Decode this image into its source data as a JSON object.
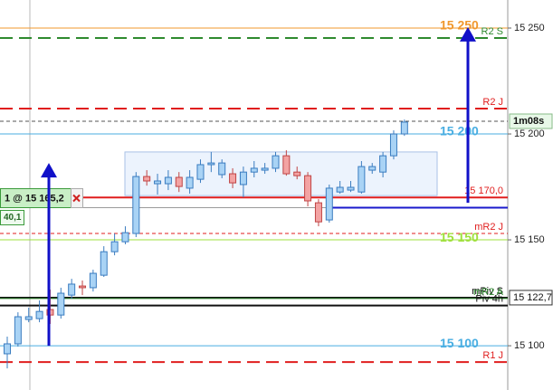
{
  "chart_data": {
    "type": "candlestick",
    "up_color": "#a9d3f5",
    "down_color": "#f3a3a3",
    "ylim": [
      15079.1,
      15263.25
    ],
    "yticks": [
      {
        "value": 15250,
        "label": "15 250"
      },
      {
        "value": 15200,
        "label": "15 200"
      },
      {
        "value": 15150,
        "label": "15 150"
      },
      {
        "value": 15100,
        "label": "15 100"
      }
    ],
    "open": [
      15096.2,
      15100.9,
      15112.4,
      15112.8,
      15117.1,
      15114.5,
      15123.9,
      15128.2,
      15127.4,
      15133.3,
      15144.4,
      15149.1,
      15153,
      15179.9,
      15176.5,
      15176.5,
      15179.5,
      15174.4,
      15178.6,
      15185.5,
      15180.8,
      15181.2,
      15176.1,
      15182,
      15182.9,
      15183.8,
      15189.7,
      15182,
      15180.3,
      15167.5,
      15159.4,
      15172.6,
      15173.5,
      15172.6,
      15182.9,
      15182,
      15189.7,
      15200
    ],
    "high": [
      15104.3,
      15115.8,
      15118,
      15121.4,
      15126.5,
      15127.4,
      15131.6,
      15130.8,
      15135.9,
      15147,
      15153,
      15156.4,
      15182,
      15182.9,
      15181.2,
      15182.9,
      15182,
      15182.9,
      15188,
      15191.5,
      15188,
      15183.8,
      15184.6,
      15187.2,
      15186.3,
      15191.5,
      15192.3,
      15184.6,
      15182,
      15169.2,
      15176.1,
      15177.8,
      15177.8,
      15187.2,
      15186.3,
      15191.5,
      15201.7,
      15206.8
    ],
    "low": [
      15089.3,
      15099.6,
      15111.1,
      15111.1,
      15110.3,
      15112.8,
      15122.2,
      15123.9,
      15125.6,
      15132.5,
      15142.7,
      15147.9,
      15151.3,
      15175.6,
      15171.4,
      15173.5,
      15172.6,
      15171.8,
      15176.9,
      15182,
      15179.1,
      15174.4,
      15170.1,
      15179.5,
      15181.2,
      15182,
      15180.3,
      15178.6,
      15165.8,
      15156.4,
      15158.1,
      15171.8,
      15172.6,
      15171.8,
      15181.2,
      15179.5,
      15188,
      15199.1
    ],
    "close": [
      15100.9,
      15113.7,
      15113.7,
      15116.2,
      15114.5,
      15124.8,
      15129.1,
      15127.4,
      15134.2,
      15144.4,
      15149.1,
      15153.4,
      15179.9,
      15177.8,
      15177.8,
      15179.5,
      15175.2,
      15179.5,
      15185.5,
      15186.3,
      15186.3,
      15176.9,
      15182,
      15183.8,
      15183.8,
      15189.7,
      15181.2,
      15180.3,
      15168.4,
      15158.5,
      15174.4,
      15174.8,
      15174.8,
      15184.6,
      15184.6,
      15189.7,
      15200,
      15205.6
    ],
    "levels": [
      {
        "value": 15250,
        "color": "#f0982e",
        "dash": "solid",
        "label": "15 250",
        "bold": true
      },
      {
        "value": 15245.3,
        "color": "#2e8a2e",
        "dash": "long",
        "label": "R2 S",
        "bold": false
      },
      {
        "value": 15212,
        "color": "#e01e1e",
        "dash": "long",
        "label": "R2 J",
        "bold": false
      },
      {
        "value": 15206,
        "color": "#555555",
        "dash": "short"
      },
      {
        "value": 15200,
        "color": "#49aee2",
        "dash": "solid",
        "label": "15 200",
        "bold": true
      },
      {
        "value": 15170,
        "color": "#e01e1e",
        "dash": "solid",
        "label": "15 170,0",
        "bold": false
      },
      {
        "value": 15153,
        "color": "#e01e1e",
        "dash": "short",
        "label": "mR2 J",
        "bold": false
      },
      {
        "value": 15150,
        "color": "#9fe03c",
        "dash": "solid",
        "label": "15 150",
        "bold": true
      },
      {
        "value": 15122.7,
        "color": "#111111",
        "dash": "solid",
        "label": "mPiv S",
        "bold": false
      },
      {
        "value": 15122.3,
        "color": "#2e8a2e",
        "dash": "solid",
        "label": "mR2 A",
        "bold": false
      },
      {
        "value": 15119,
        "color": "#111111",
        "dash": "solid",
        "label": "Piv 4h",
        "bold": false
      },
      {
        "value": 15100,
        "color": "#49aee2",
        "dash": "solid",
        "label": "15 100",
        "bold": true
      },
      {
        "value": 15092.3,
        "color": "#e01e1e",
        "dash": "long",
        "label": "R1 J",
        "bold": false
      }
    ],
    "price_tags": [
      {
        "value": 15206,
        "label": "1m08s"
      },
      {
        "value": 15122.7,
        "label": "15 122,7"
      }
    ],
    "order": {
      "price": 15165.2,
      "label": "1 @ 15 165,2",
      "sub_label": "40,1"
    },
    "zone": {
      "top": 15191.5,
      "bottom": 15170.9
    },
    "arrows": [
      {
        "from": 15100,
        "to": 15186.3
      },
      {
        "from": 15167.5,
        "to": 15250.5
      }
    ]
  }
}
